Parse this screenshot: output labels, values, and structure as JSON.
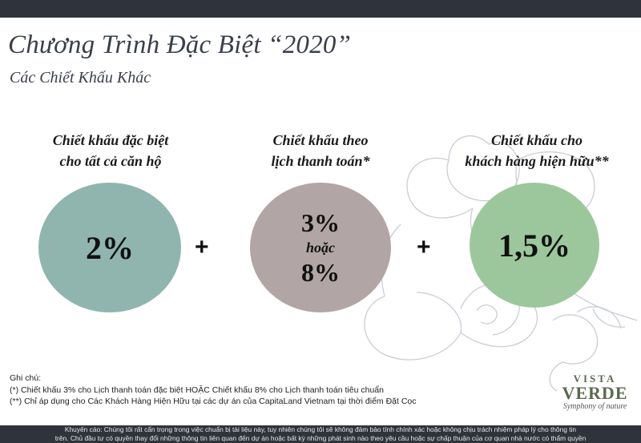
{
  "header": {
    "title": "Chương Trình Đặc Biệt “2020”",
    "subtitle": "Các Chiết Khấu Khác"
  },
  "discounts": [
    {
      "label_line1": "Chiết khấu đặc biệt",
      "label_line2": "cho tất cả căn hộ",
      "value": "2%",
      "color": "#8fb5ae"
    },
    {
      "label_line1": "Chiết khấu theo",
      "label_line2": "lịch thanh toán*",
      "value_a": "3%",
      "value_or": "hoặc",
      "value_b": "8%",
      "color": "#b2a5a5"
    },
    {
      "label_line1": "Chiết khấu cho",
      "label_line2": "khách hàng hiện hữu**",
      "value": "1,5%",
      "color": "#9cc79c"
    }
  ],
  "operators": {
    "plus1": "+",
    "plus2": "+"
  },
  "notes": {
    "heading": "Ghi chú:",
    "note1": "(*) Chiết khấu 3% cho Lịch thanh toán đặc biệt HOẶC Chiết khấu 8% cho Lịch thanh toán tiêu chuẩn",
    "note2": "(**) Chỉ áp dụng cho Các Khách Hàng Hiện Hữu tại các dự án của CapitaLand Vietnam tại thời điểm Đặt Cọc"
  },
  "logo": {
    "line1": "VISTA",
    "line2": "VERDE",
    "tagline": "Symphony of nature"
  },
  "footer": {
    "line1": "Khuyến cáo: Chúng tôi rất cẩn trọng trong việc chuẩn bị tài liệu này, tuy nhiên chúng tôi sẽ không đảm bảo tính chính xác hoặc không chịu trách nhiệm pháp lý cho thông tin",
    "line2": "trên. Chủ đầu tư có quyền thay đổi những thông tin liên quan đến dự án hoặc bất kỳ những phát sinh nào theo yêu cầu hoặc sự chấp thuận của cơ quan nhà nước có thẩm quyền"
  }
}
